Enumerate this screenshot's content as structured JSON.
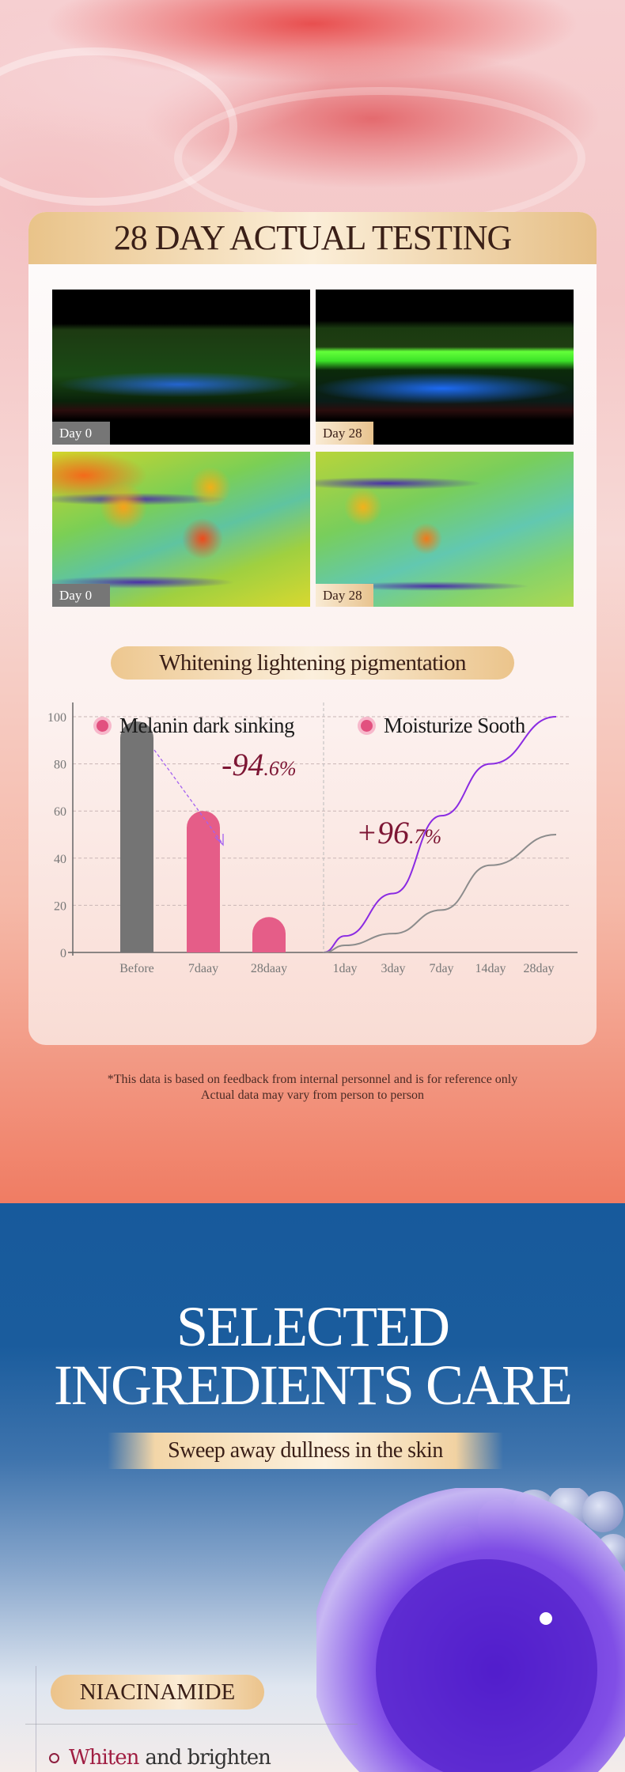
{
  "testing": {
    "title": "28 DAY ACTUAL TESTING",
    "photos": [
      {
        "label": "Day 0",
        "type": "fluorescence"
      },
      {
        "label": "Day 28",
        "type": "fluorescence"
      },
      {
        "label": "Day 0",
        "type": "heatmap"
      },
      {
        "label": "Day 28",
        "type": "heatmap"
      }
    ],
    "chart_title": "Whitening lightening pigmentation",
    "legend": [
      "Melanin dark sinking",
      "Moisturize Sooth"
    ],
    "disclaimer": [
      "*This data is based on feedback from internal personnel and is for reference only",
      "Actual data may vary from person to person"
    ]
  },
  "chart_data": [
    {
      "type": "bar",
      "ylim": [
        0,
        100
      ],
      "yticks": [
        0,
        20,
        40,
        60,
        80,
        100
      ],
      "grid": true,
      "categories": [
        "Before",
        "7daay",
        "28daay"
      ],
      "values": [
        98,
        60,
        15
      ],
      "colors": [
        "#747474",
        "#e55d88",
        "#e55d88"
      ],
      "annotation": {
        "main": "-94",
        "sub": ".6%"
      }
    },
    {
      "type": "line",
      "ylim": [
        0,
        100
      ],
      "grid": true,
      "start": 0,
      "categories": [
        "1day",
        "3day",
        "7day",
        "14day",
        "28day"
      ],
      "series": [
        {
          "values": [
            7,
            25,
            58,
            80,
            100
          ],
          "color": "#8a2be2"
        },
        {
          "values": [
            3,
            8,
            18,
            37,
            50
          ],
          "color": "#8c8c8c"
        }
      ],
      "annotation": {
        "main": "+96",
        "sub": ".7%"
      }
    }
  ],
  "ingredients": {
    "title_line1": "SELECTED",
    "title_line2": "INGREDIENTS CARE",
    "subtitle": "Sweep away dullness in the skin",
    "badge": "NIACINAMIDE",
    "bullet_highlight": "Whiten",
    "bullet_rest": "and brighten"
  },
  "colors": {
    "accent_red": "#8e1f3f",
    "gold": "#e9c389",
    "blue": "#175a9c"
  }
}
